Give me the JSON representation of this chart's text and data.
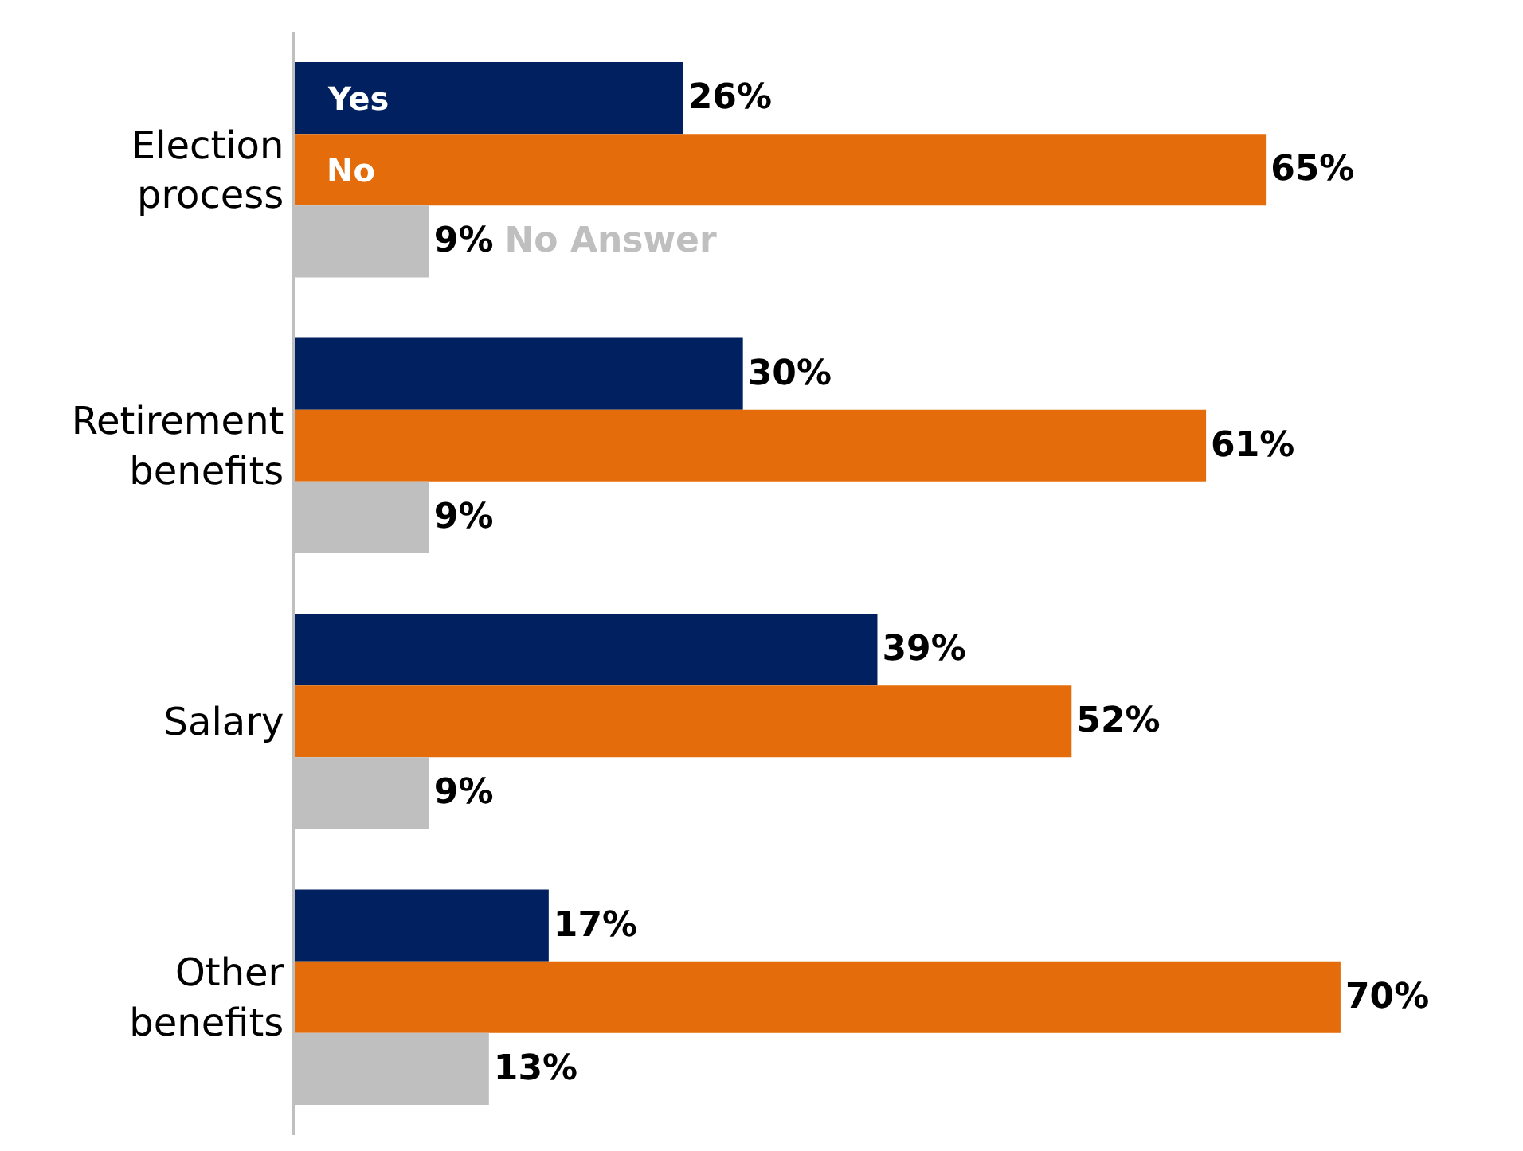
{
  "chart_data": {
    "type": "bar",
    "orientation": "horizontal",
    "categories": [
      "Election process",
      "Retirement benefits",
      "Salary",
      "Other benefits"
    ],
    "series": [
      {
        "name": "Yes",
        "color": "#002060",
        "values": [
          26,
          30,
          39,
          17
        ],
        "value_labels": [
          "26%",
          "30%",
          "39%",
          "17%"
        ]
      },
      {
        "name": "No",
        "color": "#e46c0a",
        "values": [
          65,
          61,
          52,
          70
        ],
        "value_labels": [
          "65%",
          "61%",
          "52%",
          "70%"
        ]
      },
      {
        "name": "No Answer",
        "color": "#bfbfbf",
        "values": [
          9,
          9,
          9,
          13
        ],
        "value_labels": [
          "9%",
          "9%",
          "9%",
          "13%"
        ]
      }
    ],
    "legend": false
  }
}
